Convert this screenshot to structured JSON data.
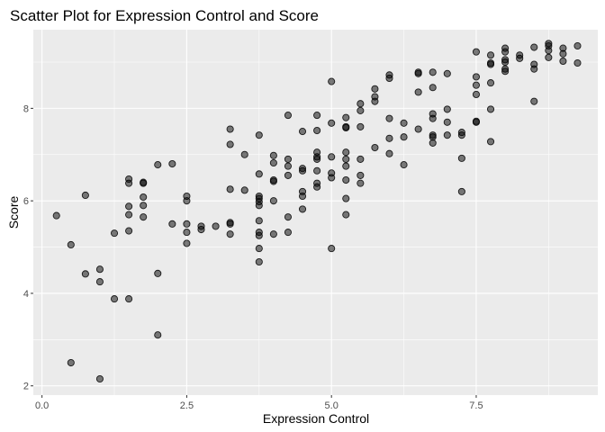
{
  "chart_data": {
    "type": "scatter",
    "title": "Scatter Plot for Expression Control and Score",
    "xlabel": "Expression Control",
    "ylabel": "Score",
    "xlim": [
      -0.15,
      9.6
    ],
    "ylim": [
      1.8,
      9.7
    ],
    "x_ticks": [
      0,
      2.5,
      5,
      7.5
    ],
    "x_tick_labels": [
      "0.0",
      "2.5",
      "5.0",
      "7.5"
    ],
    "y_ticks": [
      2,
      4,
      6,
      8
    ],
    "y_tick_labels": [
      "2",
      "4",
      "6",
      "8"
    ],
    "grid": true,
    "background": "#ebebeb",
    "point_color": "#000000",
    "points": [
      [
        0.25,
        5.68
      ],
      [
        0.5,
        5.05
      ],
      [
        0.5,
        2.5
      ],
      [
        0.75,
        6.12
      ],
      [
        0.75,
        4.42
      ],
      [
        1.0,
        4.52
      ],
      [
        1.0,
        4.25
      ],
      [
        1.0,
        2.15
      ],
      [
        1.25,
        5.3
      ],
      [
        1.25,
        3.88
      ],
      [
        1.5,
        6.47
      ],
      [
        1.5,
        6.38
      ],
      [
        1.5,
        5.88
      ],
      [
        1.5,
        5.7
      ],
      [
        1.5,
        5.35
      ],
      [
        1.5,
        3.88
      ],
      [
        1.75,
        6.4
      ],
      [
        1.75,
        6.38
      ],
      [
        1.75,
        6.08
      ],
      [
        1.75,
        5.9
      ],
      [
        1.75,
        5.65
      ],
      [
        2.0,
        6.78
      ],
      [
        2.0,
        4.43
      ],
      [
        2.0,
        3.1
      ],
      [
        2.25,
        6.8
      ],
      [
        2.25,
        5.5
      ],
      [
        2.5,
        6.1
      ],
      [
        2.5,
        6.0
      ],
      [
        2.5,
        5.5
      ],
      [
        2.5,
        5.32
      ],
      [
        2.5,
        5.08
      ],
      [
        2.75,
        5.45
      ],
      [
        2.75,
        5.38
      ],
      [
        3.0,
        5.45
      ],
      [
        3.25,
        7.55
      ],
      [
        3.25,
        7.22
      ],
      [
        3.25,
        6.25
      ],
      [
        3.25,
        5.53
      ],
      [
        3.25,
        5.5
      ],
      [
        3.25,
        5.28
      ],
      [
        3.5,
        7.0
      ],
      [
        3.5,
        6.23
      ],
      [
        3.75,
        7.42
      ],
      [
        3.75,
        6.58
      ],
      [
        3.75,
        6.1
      ],
      [
        3.75,
        6.05
      ],
      [
        3.75,
        5.98
      ],
      [
        3.75,
        5.9
      ],
      [
        3.75,
        5.57
      ],
      [
        3.75,
        5.32
      ],
      [
        3.75,
        5.25
      ],
      [
        3.75,
        4.97
      ],
      [
        3.75,
        4.68
      ],
      [
        4.0,
        6.98
      ],
      [
        4.0,
        6.82
      ],
      [
        4.0,
        6.45
      ],
      [
        4.0,
        6.42
      ],
      [
        4.0,
        6.0
      ],
      [
        4.0,
        5.28
      ],
      [
        4.25,
        7.85
      ],
      [
        4.25,
        6.9
      ],
      [
        4.25,
        6.75
      ],
      [
        4.25,
        6.55
      ],
      [
        4.25,
        5.65
      ],
      [
        4.25,
        5.32
      ],
      [
        4.5,
        7.5
      ],
      [
        4.5,
        6.7
      ],
      [
        4.5,
        6.65
      ],
      [
        4.5,
        6.2
      ],
      [
        4.5,
        6.1
      ],
      [
        4.5,
        5.82
      ],
      [
        4.75,
        7.85
      ],
      [
        4.75,
        7.52
      ],
      [
        4.75,
        7.05
      ],
      [
        4.75,
        6.95
      ],
      [
        4.75,
        6.9
      ],
      [
        4.75,
        6.65
      ],
      [
        4.75,
        6.38
      ],
      [
        4.75,
        6.3
      ],
      [
        5.0,
        8.58
      ],
      [
        5.0,
        7.68
      ],
      [
        5.0,
        6.95
      ],
      [
        5.0,
        6.6
      ],
      [
        5.0,
        6.5
      ],
      [
        5.0,
        4.97
      ],
      [
        5.25,
        7.8
      ],
      [
        5.25,
        7.6
      ],
      [
        5.25,
        7.58
      ],
      [
        5.25,
        7.05
      ],
      [
        5.25,
        6.9
      ],
      [
        5.25,
        6.75
      ],
      [
        5.25,
        6.45
      ],
      [
        5.25,
        6.05
      ],
      [
        5.25,
        5.7
      ],
      [
        5.5,
        8.1
      ],
      [
        5.5,
        7.95
      ],
      [
        5.5,
        7.6
      ],
      [
        5.5,
        6.9
      ],
      [
        5.5,
        6.55
      ],
      [
        5.5,
        6.38
      ],
      [
        5.75,
        8.42
      ],
      [
        5.75,
        8.25
      ],
      [
        5.75,
        8.15
      ],
      [
        5.75,
        7.15
      ],
      [
        6.0,
        8.72
      ],
      [
        6.0,
        8.65
      ],
      [
        6.0,
        7.78
      ],
      [
        6.0,
        7.35
      ],
      [
        6.0,
        7.02
      ],
      [
        6.25,
        7.68
      ],
      [
        6.25,
        7.38
      ],
      [
        6.25,
        6.78
      ],
      [
        6.5,
        8.78
      ],
      [
        6.5,
        8.75
      ],
      [
        6.5,
        8.35
      ],
      [
        6.5,
        7.55
      ],
      [
        6.75,
        8.78
      ],
      [
        6.75,
        8.45
      ],
      [
        6.75,
        7.88
      ],
      [
        6.75,
        7.78
      ],
      [
        6.75,
        7.42
      ],
      [
        6.75,
        7.38
      ],
      [
        6.75,
        7.25
      ],
      [
        7.0,
        8.75
      ],
      [
        7.0,
        7.98
      ],
      [
        7.0,
        7.7
      ],
      [
        7.0,
        7.42
      ],
      [
        7.25,
        7.48
      ],
      [
        7.25,
        7.42
      ],
      [
        7.25,
        6.92
      ],
      [
        7.25,
        6.2
      ],
      [
        7.5,
        9.22
      ],
      [
        7.5,
        8.68
      ],
      [
        7.5,
        8.5
      ],
      [
        7.5,
        8.3
      ],
      [
        7.5,
        7.72
      ],
      [
        7.5,
        7.7
      ],
      [
        7.75,
        9.15
      ],
      [
        7.75,
        8.98
      ],
      [
        7.75,
        8.95
      ],
      [
        7.75,
        8.55
      ],
      [
        7.75,
        7.98
      ],
      [
        7.75,
        7.28
      ],
      [
        8.0,
        9.3
      ],
      [
        8.0,
        9.22
      ],
      [
        8.0,
        9.05
      ],
      [
        8.0,
        9.0
      ],
      [
        8.0,
        8.85
      ],
      [
        8.0,
        8.8
      ],
      [
        8.25,
        9.15
      ],
      [
        8.25,
        9.08
      ],
      [
        8.5,
        9.32
      ],
      [
        8.5,
        8.95
      ],
      [
        8.5,
        8.85
      ],
      [
        8.5,
        8.15
      ],
      [
        8.75,
        9.4
      ],
      [
        8.75,
        9.35
      ],
      [
        8.75,
        9.25
      ],
      [
        8.75,
        9.1
      ],
      [
        9.0,
        9.3
      ],
      [
        9.0,
        9.18
      ],
      [
        9.0,
        9.02
      ],
      [
        9.25,
        9.35
      ],
      [
        9.25,
        8.98
      ]
    ]
  }
}
